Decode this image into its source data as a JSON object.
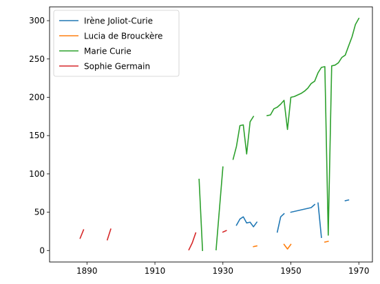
{
  "chart_data": {
    "type": "line",
    "xlim": [
      1879,
      1974
    ],
    "ylim": [
      -15,
      318
    ],
    "xticks": [
      1890,
      1910,
      1930,
      1950,
      1970
    ],
    "yticks": [
      0,
      50,
      100,
      150,
      200,
      250,
      300
    ],
    "grid": false,
    "legend_position": "top-left",
    "series": [
      {
        "name": "Irène Joliot-Curie",
        "color": "#1f77b4",
        "segments": [
          [
            [
              1934,
              33
            ],
            [
              1935,
              41
            ],
            [
              1936,
              44
            ],
            [
              1937,
              36
            ],
            [
              1938,
              37
            ],
            [
              1939,
              31
            ],
            [
              1940,
              37
            ]
          ],
          [
            [
              1946,
              24
            ],
            [
              1947,
              44
            ],
            [
              1948,
              48
            ]
          ],
          [
            [
              1950,
              50
            ],
            [
              1956,
              56
            ],
            [
              1957,
              60
            ]
          ],
          [
            [
              1958,
              62
            ],
            [
              1959,
              17
            ]
          ],
          [
            [
              1966,
              65
            ],
            [
              1967,
              66
            ]
          ]
        ]
      },
      {
        "name": "Lucia de Brouckère",
        "color": "#ff7f0e",
        "segments": [
          [
            [
              1939,
              5
            ],
            [
              1940,
              6
            ]
          ],
          [
            [
              1948,
              8
            ],
            [
              1949,
              2
            ],
            [
              1950,
              8
            ]
          ],
          [
            [
              1960,
              11
            ],
            [
              1961,
              12
            ]
          ]
        ]
      },
      {
        "name": "Marie Curie",
        "color": "#2ca02c",
        "segments": [
          [
            [
              1923,
              93
            ],
            [
              1924,
              0
            ]
          ],
          [
            [
              1928,
              1
            ],
            [
              1930,
              109
            ]
          ],
          [
            [
              1933,
              119
            ],
            [
              1934,
              136
            ],
            [
              1935,
              163
            ],
            [
              1936,
              164
            ],
            [
              1937,
              126
            ],
            [
              1938,
              168
            ],
            [
              1939,
              175
            ]
          ],
          [
            [
              1943,
              176
            ],
            [
              1944,
              177
            ],
            [
              1945,
              185
            ],
            [
              1946,
              187
            ],
            [
              1947,
              191
            ],
            [
              1948,
              196
            ],
            [
              1949,
              158
            ],
            [
              1950,
              200
            ],
            [
              1951,
              201
            ],
            [
              1952,
              203
            ],
            [
              1953,
              205
            ],
            [
              1954,
              208
            ],
            [
              1955,
              212
            ],
            [
              1956,
              218
            ],
            [
              1957,
              221
            ],
            [
              1958,
              232
            ],
            [
              1959,
              239
            ],
            [
              1960,
              240
            ],
            [
              1961,
              20
            ],
            [
              1962,
              241
            ],
            [
              1963,
              242
            ],
            [
              1964,
              245
            ],
            [
              1965,
              252
            ],
            [
              1966,
              255
            ],
            [
              1967,
              267
            ],
            [
              1968,
              279
            ],
            [
              1969,
              295
            ],
            [
              1970,
              303
            ]
          ]
        ]
      },
      {
        "name": "Sophie Germain",
        "color": "#d62728",
        "segments": [
          [
            [
              1888,
              16
            ],
            [
              1889,
              27
            ]
          ],
          [
            [
              1896,
              14
            ],
            [
              1897,
              28
            ]
          ],
          [
            [
              1920,
              1
            ],
            [
              1921,
              10
            ],
            [
              1922,
              23
            ]
          ],
          [
            [
              1930,
              24
            ],
            [
              1931,
              26
            ]
          ]
        ]
      }
    ]
  }
}
